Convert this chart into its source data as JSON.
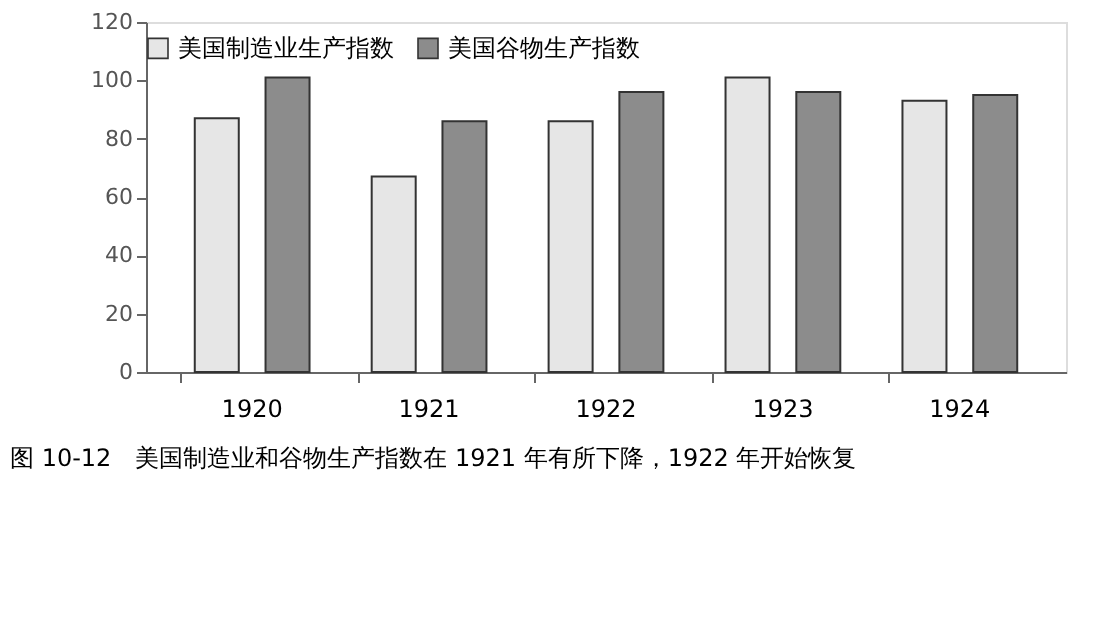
{
  "chart_data": {
    "type": "bar",
    "categories": [
      "1920",
      "1921",
      "1922",
      "1923",
      "1924"
    ],
    "series": [
      {
        "name": "美国制造业生产指数",
        "color": "#e6e6e6",
        "values": [
          87,
          67,
          86,
          101,
          93
        ]
      },
      {
        "name": "美国谷物生产指数",
        "color": "#8c8c8c",
        "values": [
          101,
          86,
          96,
          96,
          95
        ]
      }
    ],
    "ylim": [
      0,
      120
    ],
    "yticks": [
      0,
      20,
      40,
      60,
      80,
      100,
      120
    ],
    "grid": false,
    "legend": "top",
    "annotations": [
      "图 10-12　美国制造业和谷物生产指数在 1921 年有所下降，1922 年开始恢复"
    ]
  }
}
